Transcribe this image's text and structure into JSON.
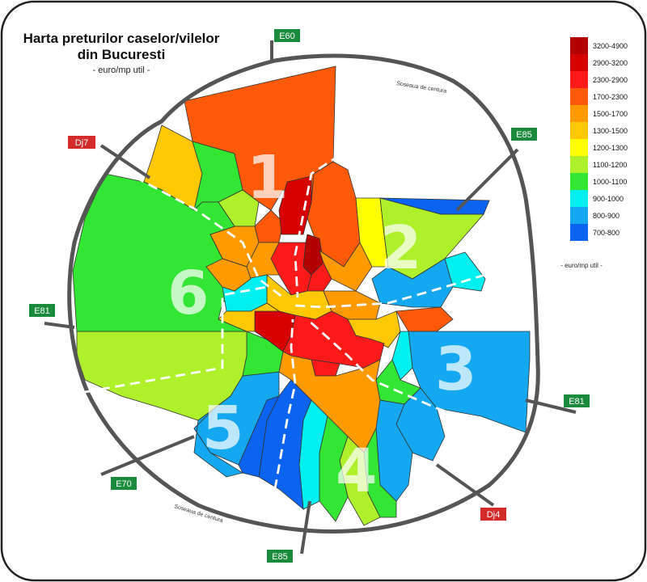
{
  "title_line1": "Harta preturilor caselor/vilelor",
  "title_line2": "din Bucuresti",
  "subtitle": "- euro/mp util -",
  "legend_unit": "- euro/mp util -",
  "ring_label_top": "Soseaua de centura",
  "ring_label_bottom": "Soseaua de centura",
  "legend": [
    {
      "label": "3200-4900",
      "color": "#b30000"
    },
    {
      "label": "2900-3200",
      "color": "#d70000"
    },
    {
      "label": "2300-2900",
      "color": "#ff1a1a"
    },
    {
      "label": "1700-2300",
      "color": "#ff5a0a"
    },
    {
      "label": "1500-1700",
      "color": "#ff9a00"
    },
    {
      "label": "1300-1500",
      "color": "#ffc800"
    },
    {
      "label": "1200-1300",
      "color": "#ffff00"
    },
    {
      "label": "1100-1200",
      "color": "#aef02a"
    },
    {
      "label": "1000-1100",
      "color": "#33e633"
    },
    {
      "label": "900-1000",
      "color": "#00f0f0"
    },
    {
      "label": "800-900",
      "color": "#14a8f0"
    },
    {
      "label": "700-800",
      "color": "#0a64f0"
    }
  ],
  "roads": {
    "e60": "E60",
    "dj7": "Dj7",
    "e85_top": "E85",
    "e81_left": "E81",
    "e81_right": "E81",
    "e70": "E70",
    "dj4": "Dj4",
    "e85_bottom": "E85"
  },
  "road_colors": {
    "european": "#1a8a3c",
    "county": "#d32a2a"
  },
  "sectors": [
    "1",
    "2",
    "3",
    "4",
    "5",
    "6"
  ]
}
